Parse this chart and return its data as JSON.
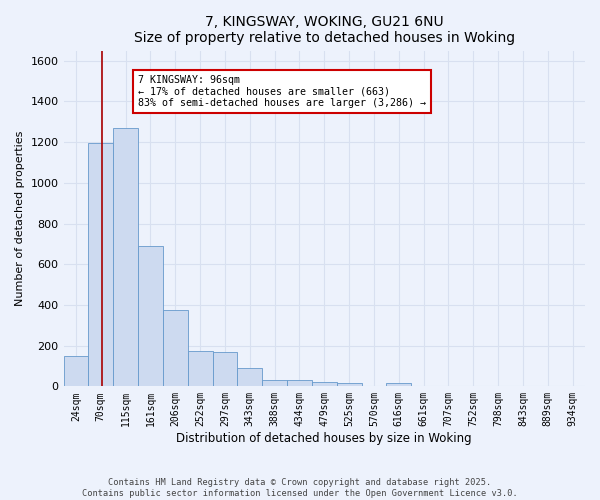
{
  "title": "7, KINGSWAY, WOKING, GU21 6NU",
  "subtitle": "Size of property relative to detached houses in Woking",
  "xlabel": "Distribution of detached houses by size in Woking",
  "ylabel": "Number of detached properties",
  "categories": [
    "24sqm",
    "70sqm",
    "115sqm",
    "161sqm",
    "206sqm",
    "252sqm",
    "297sqm",
    "343sqm",
    "388sqm",
    "434sqm",
    "479sqm",
    "525sqm",
    "570sqm",
    "616sqm",
    "661sqm",
    "707sqm",
    "752sqm",
    "798sqm",
    "843sqm",
    "889sqm",
    "934sqm"
  ],
  "values": [
    148,
    1195,
    1270,
    690,
    375,
    175,
    170,
    90,
    32,
    30,
    22,
    18,
    0,
    15,
    0,
    0,
    0,
    0,
    0,
    0,
    0
  ],
  "bar_color": "#cddaf0",
  "bar_edge_color": "#6699cc",
  "vline_x": 1.05,
  "vline_color": "#aa0000",
  "annotation_text": "7 KINGSWAY: 96sqm\n← 17% of detached houses are smaller (663)\n83% of semi-detached houses are larger (3,286) →",
  "annotation_box_color": "#ffffff",
  "annotation_box_edge": "#cc0000",
  "ylim": [
    0,
    1650
  ],
  "yticks": [
    0,
    200,
    400,
    600,
    800,
    1000,
    1200,
    1400,
    1600
  ],
  "bg_color": "#edf2fc",
  "grid_color": "#d8e0f0",
  "footer1": "Contains HM Land Registry data © Crown copyright and database right 2025.",
  "footer2": "Contains public sector information licensed under the Open Government Licence v3.0."
}
